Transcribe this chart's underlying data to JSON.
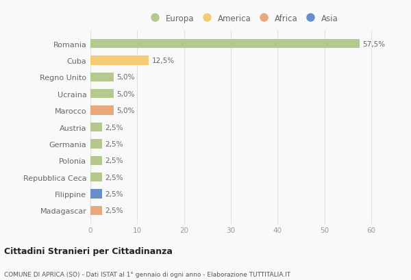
{
  "countries": [
    "Romania",
    "Cuba",
    "Regno Unito",
    "Ucraina",
    "Marocco",
    "Austria",
    "Germania",
    "Polonia",
    "Repubblica Ceca",
    "Filippine",
    "Madagascar"
  ],
  "values": [
    57.5,
    12.5,
    5.0,
    5.0,
    5.0,
    2.5,
    2.5,
    2.5,
    2.5,
    2.5,
    2.5
  ],
  "colors": [
    "#b5c98e",
    "#f5cc74",
    "#b5c98e",
    "#b5c98e",
    "#e8a87c",
    "#b5c98e",
    "#b5c98e",
    "#b5c98e",
    "#b5c98e",
    "#6a8fc8",
    "#e8a87c"
  ],
  "labels": [
    "57,5%",
    "12,5%",
    "5,0%",
    "5,0%",
    "5,0%",
    "2,5%",
    "2,5%",
    "2,5%",
    "2,5%",
    "2,5%",
    "2,5%"
  ],
  "legend_labels": [
    "Europa",
    "America",
    "Africa",
    "Asia"
  ],
  "legend_colors": [
    "#b5c98e",
    "#f5cc74",
    "#e8a87c",
    "#6a8fc8"
  ],
  "xlim": [
    0,
    65
  ],
  "xticks": [
    0,
    10,
    20,
    30,
    40,
    50,
    60
  ],
  "title": "Cittadini Stranieri per Cittadinanza",
  "subtitle": "COMUNE DI APRICA (SO) - Dati ISTAT al 1° gennaio di ogni anno - Elaborazione TUTTITALIA.IT",
  "bg_color": "#f9f9f9",
  "grid_color": "#e0e0e0",
  "bar_height": 0.55
}
